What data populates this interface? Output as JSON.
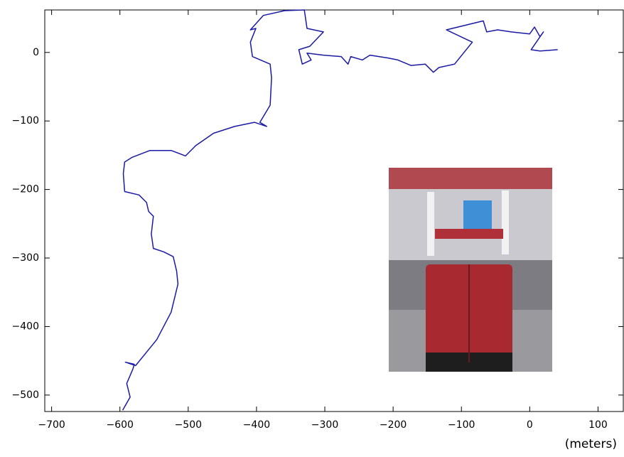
{
  "chart_data": {
    "type": "line",
    "x": [
      -596,
      -585,
      -590,
      -581,
      -579,
      -592,
      -577,
      -546,
      -525,
      -515,
      -517,
      -522,
      -536,
      -551,
      -554,
      -551,
      -558,
      -561,
      -572,
      -593,
      -595,
      -593,
      -582,
      -556,
      -525,
      -504,
      -489,
      -463,
      -432,
      -403,
      -385,
      -395,
      -380,
      -378,
      -380,
      -406,
      -409,
      -401,
      -409,
      -390,
      -359,
      -330,
      -326,
      -302,
      -322,
      -338,
      -333,
      -320,
      -326,
      -302,
      -276,
      -266,
      -262,
      -245,
      -234,
      -208,
      -193,
      -174,
      -153,
      -141,
      -133,
      -110,
      -84,
      -122,
      -68,
      -63,
      -47,
      -27,
      0,
      7,
      15,
      20,
      2,
      15,
      41
    ],
    "values": [
      -522,
      -503,
      -483,
      -462,
      -455,
      -452,
      -457,
      -419,
      -379,
      -338,
      -319,
      -298,
      -291,
      -286,
      -265,
      -239,
      -232,
      -219,
      -208,
      -203,
      -177,
      -160,
      -153,
      -143,
      -143,
      -151,
      -136,
      -118,
      -108,
      -102,
      -108,
      -102,
      -77,
      -37,
      -17,
      -6,
      15,
      35,
      33,
      54,
      61,
      62,
      35,
      30,
      9,
      4,
      -17,
      -11,
      -1,
      -4,
      -6,
      -17,
      -6,
      -11,
      -4,
      -8,
      -11,
      -19,
      -17,
      -29,
      -22,
      -17,
      15,
      33,
      46,
      30,
      33,
      30,
      27,
      37,
      23,
      30,
      4,
      2,
      4
    ],
    "color": "#1a1aa6",
    "xlim": [
      -710,
      137
    ],
    "ylim": [
      -524,
      62
    ],
    "xticks": [
      {
        "value": -700,
        "label": "−700"
      },
      {
        "value": -600,
        "label": "−600"
      },
      {
        "value": -500,
        "label": "−500"
      },
      {
        "value": -400,
        "label": "−400"
      },
      {
        "value": -300,
        "label": "−300"
      },
      {
        "value": -200,
        "label": "−200"
      },
      {
        "value": -100,
        "label": "−100"
      },
      0,
      100
    ],
    "yticks": [
      {
        "value": -500,
        "label": "−500"
      },
      {
        "value": -400,
        "label": "−400"
      },
      {
        "value": -300,
        "label": "−300"
      },
      {
        "value": -200,
        "label": "−200"
      },
      {
        "value": -100,
        "label": "−100"
      },
      0
    ],
    "x_label": "(meters)",
    "grid": false
  }
}
